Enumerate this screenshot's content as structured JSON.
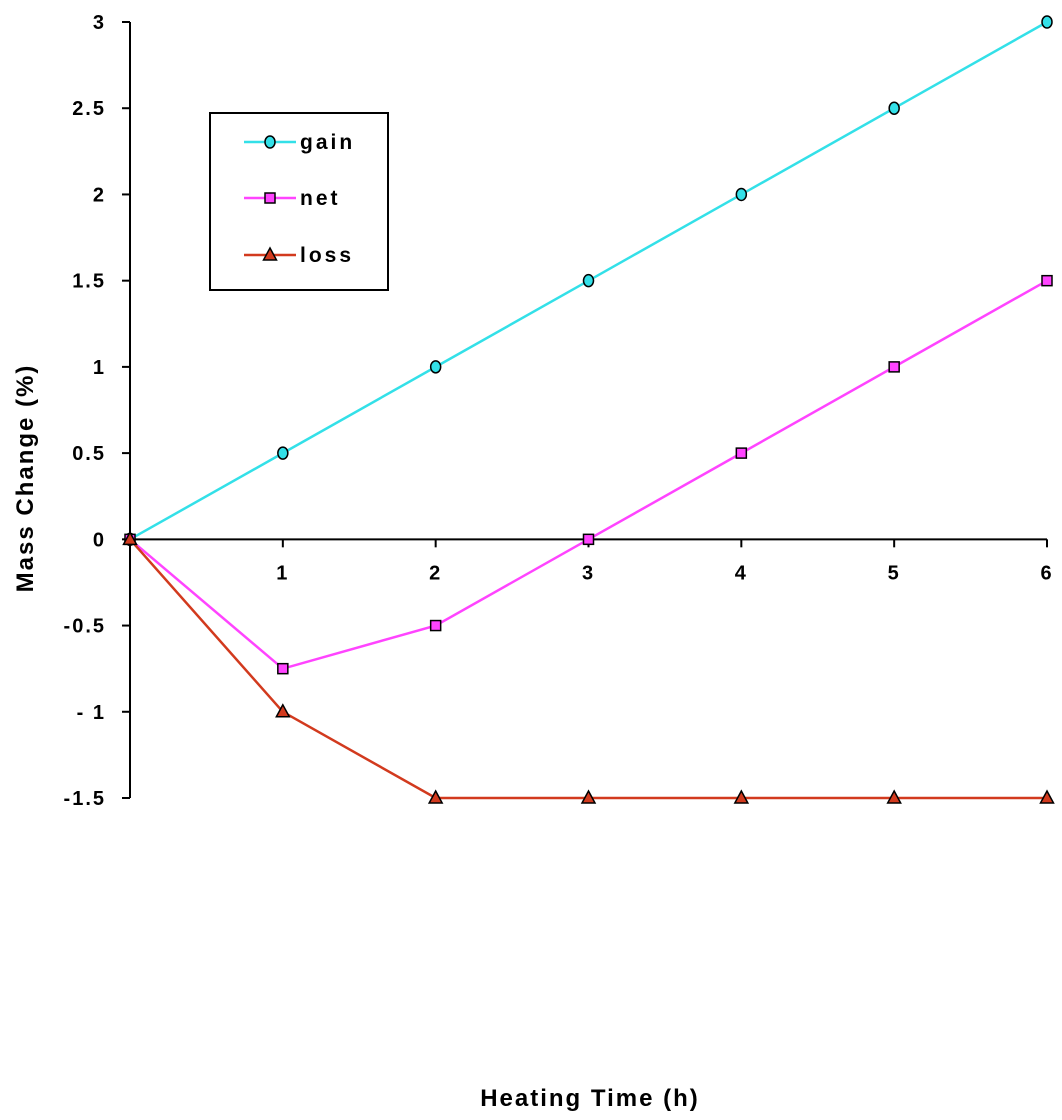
{
  "chart_data": {
    "type": "line",
    "xlabel": "Heating  Time  (h)",
    "ylabel": "Mass  Change  (%)",
    "x": [
      0,
      1,
      2,
      3,
      4,
      5,
      6
    ],
    "xticks": [
      "1",
      "2",
      "3",
      "4",
      "5",
      "6"
    ],
    "xticks_values": [
      1,
      2,
      3,
      4,
      5,
      6
    ],
    "yticks": [
      "-1.5",
      "- 1",
      "-0.5",
      "0",
      "0.5",
      "1",
      "1.5",
      "2",
      "2.5",
      "3"
    ],
    "yticks_values": [
      -1.5,
      -1,
      -0.5,
      0,
      0.5,
      1,
      1.5,
      2,
      2.5,
      3
    ],
    "xlim": [
      0,
      6
    ],
    "ylim": [
      -1.5,
      3
    ],
    "grid": false,
    "legend_position": "top-left",
    "series": [
      {
        "name": "gain",
        "color": "#33e0e8",
        "marker": "circle",
        "values": [
          0,
          0.5,
          1,
          1.5,
          2,
          2.5,
          3
        ]
      },
      {
        "name": "net",
        "color": "#ff44ff",
        "marker": "square",
        "values": [
          0,
          -0.75,
          -0.5,
          0,
          0.5,
          1,
          1.5
        ]
      },
      {
        "name": "loss",
        "color": "#d23a1e",
        "marker": "triangle",
        "values": [
          0,
          -1,
          -1.5,
          -1.5,
          -1.5,
          -1.5,
          -1.5
        ]
      }
    ]
  }
}
